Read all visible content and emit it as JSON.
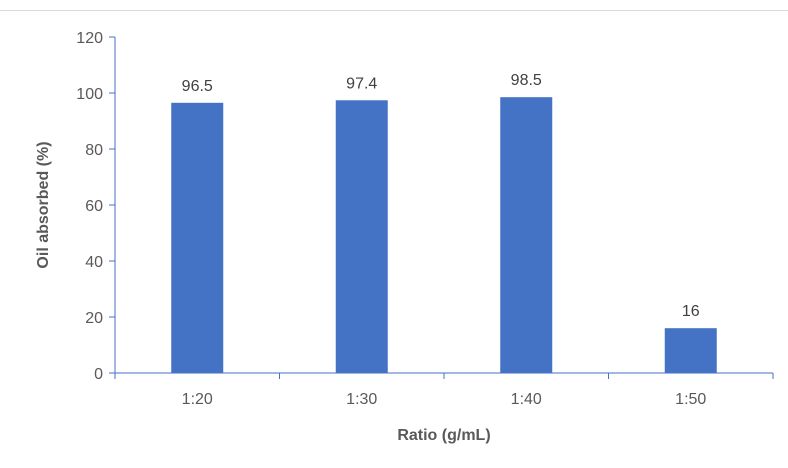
{
  "chart_data": {
    "type": "bar",
    "title": "",
    "categories": [
      "1:20",
      "1:30",
      "1:40",
      "1:50"
    ],
    "series": [
      {
        "values": [
          96.5,
          97.4,
          98.5,
          16
        ]
      }
    ],
    "data_labels": [
      "96.5",
      "97.4",
      "98.5",
      "16"
    ],
    "xlabel": "Ratio (g/mL)",
    "ylabel": "Oil absorbed (%)",
    "ylim": [
      0,
      120
    ],
    "yticks": [
      0,
      20,
      40,
      60,
      80,
      100,
      120
    ],
    "ytick_labels": [
      "0",
      "20",
      "40",
      "60",
      "80",
      "100",
      "120"
    ],
    "grid": false,
    "legend": "none",
    "colors": {
      "bar": "#4472C4",
      "axis": "#4472C4",
      "text": "#595959"
    }
  }
}
